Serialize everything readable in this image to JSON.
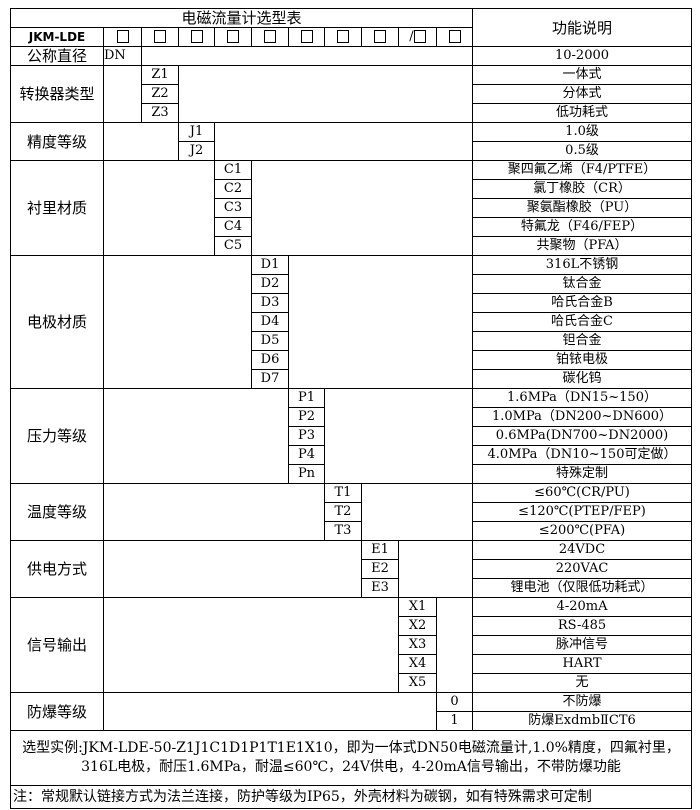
{
  "title": "电磁流量计选型表",
  "function_header": "功能说明",
  "model": "JKM-LDE",
  "header_boxes": [
    "□",
    "□",
    "□",
    "□",
    "□",
    "□",
    "□",
    "□",
    "/□",
    "□"
  ],
  "groups": [
    {
      "name": "公称直径",
      "col": 1,
      "items": [
        {
          "code": "DN",
          "desc": "10-2000"
        }
      ]
    },
    {
      "name": "转换器类型",
      "col": 2,
      "items": [
        {
          "code": "Z1",
          "desc": "一体式"
        },
        {
          "code": "Z2",
          "desc": "分体式"
        },
        {
          "code": "Z3",
          "desc": "低功耗式"
        }
      ]
    },
    {
      "name": "精度等级",
      "col": 3,
      "items": [
        {
          "code": "J1",
          "desc": "1.0级"
        },
        {
          "code": "J2",
          "desc": "0.5级"
        }
      ]
    },
    {
      "name": "衬里材质",
      "col": 4,
      "items": [
        {
          "code": "C1",
          "desc": "聚四氟乙烯（F4/PTFE）"
        },
        {
          "code": "C2",
          "desc": "氯丁橡胶（CR）"
        },
        {
          "code": "C3",
          "desc": "聚氨酯橡胶（PU）"
        },
        {
          "code": "C4",
          "desc": "特氟龙（F46/FEP）"
        },
        {
          "code": "C5",
          "desc": "共聚物（PFA）"
        }
      ]
    },
    {
      "name": "电极材质",
      "col": 5,
      "items": [
        {
          "code": "D1",
          "desc": "316L不锈钢"
        },
        {
          "code": "D2",
          "desc": "钛合金"
        },
        {
          "code": "D3",
          "desc": "哈氏合金B"
        },
        {
          "code": "D4",
          "desc": "哈氏合金C"
        },
        {
          "code": "D5",
          "desc": "钽合金"
        },
        {
          "code": "D6",
          "desc": "铂铱电极"
        },
        {
          "code": "D7",
          "desc": "碳化钨"
        }
      ]
    },
    {
      "name": "压力等级",
      "col": 6,
      "items": [
        {
          "code": "P1",
          "desc": "1.6MPa（DN15~150）"
        },
        {
          "code": "P2",
          "desc": "1.0MPa（DN200~DN600）"
        },
        {
          "code": "P3",
          "desc": "0.6MPa(DN700~DN2000)"
        },
        {
          "code": "P4",
          "desc": "4.0MPa（DN10~150可定做）"
        },
        {
          "code": "Pn",
          "desc": "特殊定制"
        }
      ]
    },
    {
      "name": "温度等级",
      "col": 7,
      "items": [
        {
          "code": "T1",
          "desc": "≤60℃(CR/PU)"
        },
        {
          "code": "T2",
          "desc": "≤120℃(PTEP/FEP)"
        },
        {
          "code": "T3",
          "desc": "≤200℃(PFA)"
        }
      ]
    },
    {
      "name": "供电方式",
      "col": 8,
      "items": [
        {
          "code": "E1",
          "desc": "24VDC"
        },
        {
          "code": "E2",
          "desc": "220VAC"
        },
        {
          "code": "E3",
          "desc": "锂电池（仅限低功耗式）"
        }
      ]
    },
    {
      "name": "信号输出",
      "col": 9,
      "items": [
        {
          "code": "X1",
          "desc": "4-20mA"
        },
        {
          "code": "X2",
          "desc": "RS-485"
        },
        {
          "code": "X3",
          "desc": "脉冲信号"
        },
        {
          "code": "X4",
          "desc": "HART"
        },
        {
          "code": "X5",
          "desc": "无"
        }
      ]
    },
    {
      "name": "防爆等级",
      "col": 10,
      "items": [
        {
          "code": "0",
          "desc": "不防爆"
        },
        {
          "code": "1",
          "desc": "防爆ExdmbⅡCT6"
        }
      ]
    }
  ],
  "example": "选型实例:JKM-LDE-50-Z1J1C1D1P1T1E1X10，即为一体式DN50电磁流量计,1.0%精度，四氟衬里，316L电极，耐压1.6MPa，耐温≤60℃，24V供电，4-20mA信号输出，不带防爆功能",
  "note": "注：常规默认链接方式为法兰连接，防护等级为IP65，外壳材料为碳钢，如有特殊需求可定制"
}
